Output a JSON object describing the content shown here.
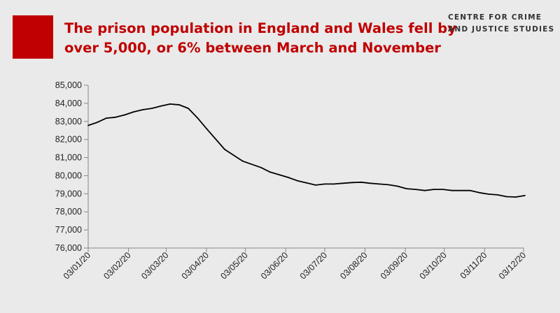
{
  "header": {
    "title_line1": "The prison population in England and Wales fell by",
    "title_line2": "over 5,000, or 6% between March and November",
    "org_line1": "CENTRE FOR CRIME",
    "org_line2": "AND JUSTICE STUDIES"
  },
  "colors": {
    "accent": "#c00000",
    "line": "#000000",
    "background": "#eaeaea"
  },
  "chart_data": {
    "type": "line",
    "title": "The prison population in England and Wales fell by over 5,000, or 6% between March and November",
    "xlabel": "",
    "ylabel": "",
    "ylim": [
      76000,
      85000
    ],
    "yticks": [
      "76,000",
      "77,000",
      "78,000",
      "79,000",
      "80,000",
      "81,000",
      "82,000",
      "83,000",
      "84,000",
      "85,000"
    ],
    "xticks": [
      "03/01/20",
      "03/02/20",
      "03/03/20",
      "03/04/20",
      "03/05/20",
      "03/06/20",
      "03/07/20",
      "03/08/20",
      "03/09/20",
      "03/10/20",
      "03/11/20",
      "03/12/20"
    ],
    "grid": false,
    "legend": "none",
    "series": [
      {
        "x": [
          "03/01/20",
          "10/01/20",
          "17/01/20",
          "24/01/20",
          "31/01/20",
          "07/02/20",
          "14/02/20",
          "21/02/20",
          "28/02/20",
          "06/03/20",
          "13/03/20",
          "20/03/20",
          "27/03/20",
          "03/04/20",
          "17/04/20",
          "01/05/20",
          "15/05/20",
          "22/05/20",
          "29/05/20",
          "05/06/20",
          "12/06/20",
          "19/06/20",
          "26/06/20",
          "03/07/20",
          "10/07/20",
          "17/07/20",
          "24/07/20",
          "31/07/20",
          "07/08/20",
          "14/08/20",
          "21/08/20",
          "28/08/20",
          "04/09/20",
          "11/09/20",
          "18/09/20",
          "25/09/20",
          "02/10/20",
          "09/10/20",
          "16/10/20",
          "23/10/20",
          "30/10/20",
          "06/11/20",
          "13/11/20",
          "20/11/20",
          "27/11/20",
          "04/12/20"
        ],
        "values": [
          82780,
          82950,
          83180,
          83230,
          83360,
          83530,
          83650,
          83720,
          83850,
          83960,
          83920,
          83720,
          83200,
          82600,
          81450,
          80800,
          80450,
          80200,
          80050,
          79900,
          79720,
          79600,
          79480,
          79540,
          79540,
          79580,
          79620,
          79640,
          79580,
          79540,
          79500,
          79420,
          79280,
          79240,
          79180,
          79240,
          79240,
          79180,
          79180,
          79180,
          79060,
          78980,
          78940,
          78840,
          78820,
          78900
        ]
      }
    ]
  }
}
